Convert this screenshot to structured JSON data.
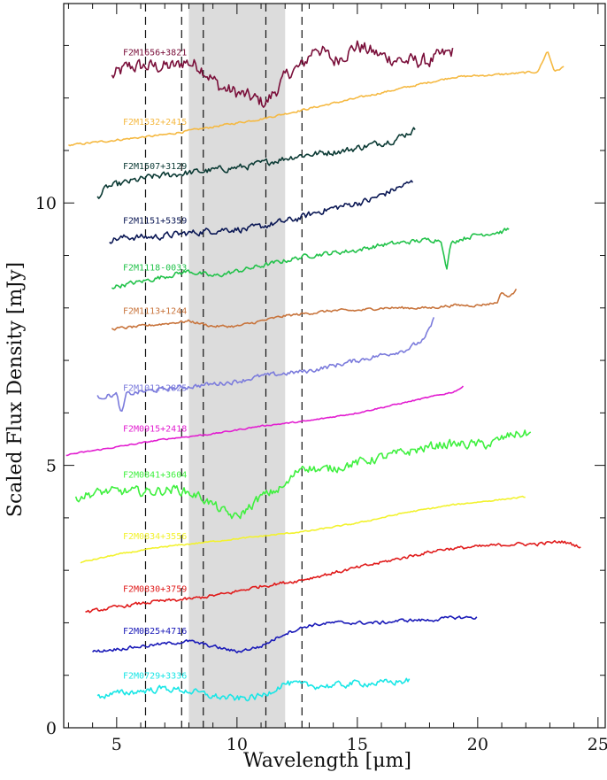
{
  "chart_data": {
    "type": "line",
    "title": "",
    "xlabel": "Wavelength [μm]",
    "ylabel": "Scaled Flux Density [mJy]",
    "xlim": [
      2.8,
      25.3
    ],
    "ylim": [
      0,
      13.8
    ],
    "xticks": [
      5,
      10,
      15,
      20,
      25
    ],
    "yticks": [
      0,
      5,
      10
    ],
    "grid": false,
    "shaded_band": [
      8.0,
      12.0
    ],
    "vlines": [
      6.2,
      7.7,
      8.6,
      11.2,
      12.7
    ],
    "series": [
      {
        "name": "F2M1656+3821",
        "color": "#7a0f3a",
        "noise": 0.22,
        "x": [
          4.8,
          5.5,
          6.5,
          7.5,
          7.8,
          8.5,
          9.3,
          10.0,
          11.2,
          11.7,
          12.2,
          12.7,
          13.3,
          14.0,
          15.0,
          16.0,
          17.0,
          18.0,
          19.0
        ],
        "y": [
          12.4,
          12.6,
          12.6,
          12.6,
          12.7,
          12.6,
          12.2,
          12.1,
          11.9,
          12.2,
          12.5,
          12.6,
          13.0,
          12.7,
          13.0,
          12.8,
          12.7,
          12.7,
          12.9
        ]
      },
      {
        "name": "F2M1532+2415",
        "color": "#f5b942",
        "noise": 0.03,
        "x": [
          3.0,
          5.0,
          7.0,
          9.0,
          11.0,
          13.0,
          15.0,
          17.0,
          19.0,
          21.0,
          22.5,
          22.9,
          23.2,
          23.6
        ],
        "y": [
          11.1,
          11.2,
          11.3,
          11.45,
          11.6,
          11.8,
          12.0,
          12.2,
          12.4,
          12.45,
          12.5,
          12.9,
          12.5,
          12.6
        ]
      },
      {
        "name": "F2M1507+3129",
        "color": "#0c3b35",
        "noise": 0.1,
        "x": [
          4.2,
          4.6,
          5.5,
          6.5,
          7.5,
          8.5,
          9.5,
          10.5,
          11.5,
          12.5,
          13.5,
          14.5,
          15.5,
          16.5,
          17.4
        ],
        "y": [
          10.1,
          10.3,
          10.4,
          10.5,
          10.55,
          10.6,
          10.65,
          10.7,
          10.8,
          10.9,
          10.95,
          11.0,
          11.1,
          11.2,
          11.4
        ]
      },
      {
        "name": "F2M1151+5359",
        "color": "#0b1855",
        "noise": 0.1,
        "x": [
          4.7,
          5.5,
          6.5,
          7.5,
          8.5,
          9.5,
          10.5,
          11.5,
          12.5,
          13.5,
          14.5,
          15.5,
          16.5,
          17.3
        ],
        "y": [
          9.3,
          9.35,
          9.35,
          9.4,
          9.45,
          9.5,
          9.5,
          9.6,
          9.7,
          9.85,
          9.95,
          10.05,
          10.25,
          10.4
        ]
      },
      {
        "name": "F2M1118-0033",
        "color": "#22c24a",
        "noise": 0.07,
        "x": [
          4.8,
          6.0,
          7.0,
          8.0,
          9.0,
          10.0,
          11.0,
          12.0,
          13.0,
          14.0,
          15.0,
          16.0,
          17.0,
          18.0,
          18.5,
          18.7,
          18.9,
          19.2,
          20.0,
          21.0,
          21.3
        ],
        "y": [
          8.4,
          8.5,
          8.6,
          8.7,
          8.6,
          8.7,
          8.8,
          8.9,
          9.0,
          9.05,
          9.1,
          9.2,
          9.25,
          9.3,
          9.3,
          8.7,
          9.25,
          9.3,
          9.4,
          9.45,
          9.5
        ]
      },
      {
        "name": "F2M1113+1244",
        "color": "#c8743c",
        "noise": 0.04,
        "x": [
          4.8,
          6.0,
          7.0,
          8.0,
          9.0,
          10.0,
          11.0,
          12.0,
          13.0,
          14.0,
          15.0,
          16.0,
          17.0,
          18.0,
          19.0,
          20.0,
          20.8,
          21.0,
          21.3,
          21.6
        ],
        "y": [
          7.6,
          7.65,
          7.7,
          7.75,
          7.65,
          7.65,
          7.75,
          7.85,
          7.9,
          7.95,
          7.95,
          8.0,
          8.0,
          8.0,
          8.05,
          8.05,
          8.1,
          8.3,
          8.2,
          8.35
        ]
      },
      {
        "name": "F2M1012+2825",
        "color": "#7b7bdc",
        "noise": 0.07,
        "x": [
          4.2,
          5.0,
          5.2,
          5.4,
          6.0,
          7.0,
          8.0,
          9.0,
          10.0,
          11.0,
          12.0,
          13.0,
          14.0,
          15.0,
          16.0,
          17.0,
          17.8,
          18.2
        ],
        "y": [
          6.3,
          6.35,
          5.95,
          6.35,
          6.4,
          6.45,
          6.5,
          6.55,
          6.6,
          6.7,
          6.75,
          6.8,
          6.9,
          7.0,
          7.1,
          7.2,
          7.4,
          7.8
        ]
      },
      {
        "name": "F2M0915+2418",
        "color": "#e21ed0",
        "noise": 0.02,
        "x": [
          2.9,
          5.0,
          7.0,
          9.0,
          11.0,
          13.0,
          15.0,
          17.0,
          19.0,
          19.4
        ],
        "y": [
          5.2,
          5.35,
          5.5,
          5.6,
          5.75,
          5.85,
          6.0,
          6.2,
          6.4,
          6.5
        ]
      },
      {
        "name": "F2M0841+3604",
        "color": "#3ff03f",
        "noise": 0.14,
        "x": [
          3.3,
          4.5,
          5.5,
          6.5,
          7.5,
          8.5,
          9.5,
          10.0,
          11.0,
          12.0,
          12.7,
          13.5,
          14.5,
          15.5,
          16.5,
          17.5,
          18.5,
          19.5,
          20.5,
          21.5,
          22.2
        ],
        "y": [
          4.4,
          4.5,
          4.5,
          4.5,
          4.55,
          4.4,
          4.1,
          4.0,
          4.4,
          4.6,
          5.0,
          4.9,
          5.0,
          5.1,
          5.2,
          5.3,
          5.4,
          5.4,
          5.4,
          5.6,
          5.6
        ]
      },
      {
        "name": "F2M0834+3556",
        "color": "#f2f22e",
        "noise": 0.02,
        "x": [
          3.5,
          5.0,
          7.0,
          9.0,
          11.0,
          13.0,
          15.0,
          17.0,
          19.0,
          21.0,
          22.0
        ],
        "y": [
          3.15,
          3.3,
          3.45,
          3.55,
          3.65,
          3.75,
          3.9,
          4.1,
          4.25,
          4.35,
          4.4
        ]
      },
      {
        "name": "F2M0830+3759",
        "color": "#e01b1b",
        "noise": 0.05,
        "x": [
          3.7,
          5.0,
          6.5,
          8.0,
          9.5,
          11.0,
          12.5,
          14.0,
          15.5,
          17.0,
          18.5,
          20.0,
          21.5,
          22.5,
          23.5,
          24.3
        ],
        "y": [
          2.2,
          2.3,
          2.4,
          2.45,
          2.55,
          2.7,
          2.8,
          2.95,
          3.1,
          3.25,
          3.4,
          3.45,
          3.5,
          3.5,
          3.55,
          3.45
        ]
      },
      {
        "name": "F2M0825+4716",
        "color": "#1a1ab8",
        "noise": 0.05,
        "x": [
          4.0,
          5.0,
          6.0,
          7.0,
          8.0,
          9.0,
          10.0,
          11.0,
          12.0,
          13.0,
          14.0,
          15.0,
          16.0,
          17.0,
          18.0,
          19.0,
          20.0
        ],
        "y": [
          1.45,
          1.5,
          1.55,
          1.6,
          1.65,
          1.55,
          1.45,
          1.55,
          1.8,
          1.95,
          2.0,
          2.0,
          2.0,
          2.05,
          2.05,
          2.1,
          2.1
        ]
      },
      {
        "name": "F2M0729+3336",
        "color": "#18e6e6",
        "noise": 0.1,
        "x": [
          4.2,
          5.0,
          6.0,
          7.0,
          8.0,
          9.0,
          10.0,
          11.0,
          12.0,
          13.0,
          14.0,
          15.0,
          16.0,
          17.2
        ],
        "y": [
          0.6,
          0.65,
          0.7,
          0.75,
          0.7,
          0.6,
          0.55,
          0.6,
          0.85,
          0.8,
          0.8,
          0.85,
          0.85,
          0.9
        ]
      }
    ]
  }
}
